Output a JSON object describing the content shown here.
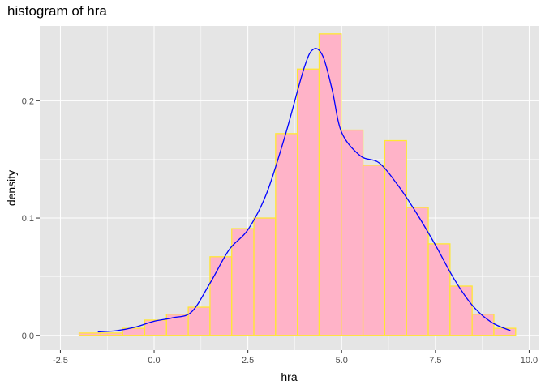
{
  "chart_data": {
    "type": "bar",
    "title": "histogram of hra",
    "xlabel": "hra",
    "ylabel": "density",
    "xlim": [
      -2.5,
      10.0
    ],
    "ylim": [
      0,
      0.25
    ],
    "x_ticks": [
      -2.5,
      0.0,
      2.5,
      5.0,
      7.5,
      10.0
    ],
    "x_tick_labels": [
      "-2.5",
      "0.0",
      "2.5",
      "5.0",
      "7.5",
      "10.0"
    ],
    "y_ticks": [
      0.0,
      0.1,
      0.2
    ],
    "y_tick_labels": [
      "0.0",
      "0.1",
      "0.2"
    ],
    "grid": true,
    "bin_edges": [
      -2.0,
      -1.42,
      -0.84,
      -0.25,
      0.33,
      0.91,
      1.49,
      2.07,
      2.66,
      3.24,
      3.82,
      4.4,
      4.99,
      5.57,
      6.15,
      6.73,
      7.31,
      7.89,
      8.48,
      9.06,
      9.64
    ],
    "values": [
      0.002,
      0.002,
      0.006,
      0.013,
      0.018,
      0.024,
      0.067,
      0.091,
      0.1,
      0.172,
      0.227,
      0.257,
      0.175,
      0.145,
      0.166,
      0.109,
      0.078,
      0.042,
      0.018,
      0.006
    ],
    "density_curve": {
      "x": [
        -1.5,
        -1.0,
        -0.5,
        0.0,
        0.5,
        1.0,
        1.5,
        2.0,
        2.5,
        3.0,
        3.5,
        4.0,
        4.25,
        4.5,
        4.75,
        5.0,
        5.5,
        6.0,
        6.5,
        7.0,
        7.5,
        8.0,
        8.5,
        9.0,
        9.5
      ],
      "y": [
        0.003,
        0.004,
        0.007,
        0.012,
        0.015,
        0.02,
        0.045,
        0.073,
        0.09,
        0.121,
        0.171,
        0.228,
        0.244,
        0.238,
        0.209,
        0.173,
        0.153,
        0.147,
        0.128,
        0.104,
        0.077,
        0.048,
        0.025,
        0.011,
        0.004
      ]
    },
    "colors": {
      "panel_background": "#e5e5e5",
      "grid": "#ffffff",
      "bar_fill": "#ffb3c8",
      "bar_outline": "#ffe733",
      "curve": "#0000ff"
    }
  }
}
